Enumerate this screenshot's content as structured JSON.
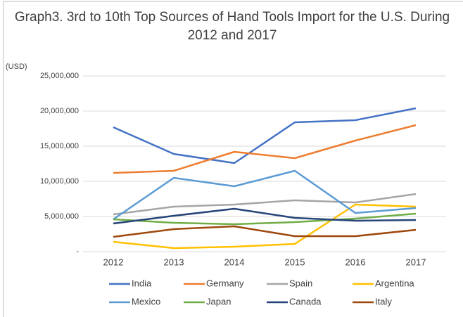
{
  "chart_data": {
    "type": "line",
    "title": "Graph3. 3rd to 10th Top Sources of Hand Tools Import for the U.S. During 2012 and 2017",
    "y_label": "(USD)",
    "categories": [
      "2012",
      "2013",
      "2014",
      "2015",
      "2016",
      "2017"
    ],
    "ylim": [
      0,
      25000000
    ],
    "yticks": [
      {
        "value": 0,
        "label": "-"
      },
      {
        "value": 5000000,
        "label": "5,000,000"
      },
      {
        "value": 10000000,
        "label": "10,000,000"
      },
      {
        "value": 15000000,
        "label": "15,000,000"
      },
      {
        "value": 20000000,
        "label": "20,000,000"
      },
      {
        "value": 25000000,
        "label": "25,000,000"
      }
    ],
    "grid": true,
    "legend": "bottom",
    "series": [
      {
        "name": "India",
        "color": "#4472c4",
        "values": [
          17700000,
          13900000,
          12600000,
          18400000,
          18700000,
          20400000
        ]
      },
      {
        "name": "Germany",
        "color": "#ed7d31",
        "values": [
          11200000,
          11500000,
          14200000,
          13300000,
          15800000,
          18000000
        ]
      },
      {
        "name": "Spain",
        "color": "#a5a5a5",
        "values": [
          5300000,
          6400000,
          6700000,
          7300000,
          7000000,
          8200000
        ]
      },
      {
        "name": "Argentina",
        "color": "#ffc000",
        "values": [
          1400000,
          500000,
          700000,
          1100000,
          6700000,
          6400000
        ]
      },
      {
        "name": "Mexico",
        "color": "#5b9bd5",
        "values": [
          4600000,
          10500000,
          9300000,
          11500000,
          5500000,
          6200000
        ]
      },
      {
        "name": "Japan",
        "color": "#70ad47",
        "values": [
          4600000,
          4100000,
          3900000,
          4200000,
          4700000,
          5400000
        ]
      },
      {
        "name": "Canada",
        "color": "#264478",
        "values": [
          4000000,
          5100000,
          6100000,
          4800000,
          4400000,
          4500000
        ]
      },
      {
        "name": "Italy",
        "color": "#9e480e",
        "values": [
          2100000,
          3200000,
          3600000,
          2200000,
          2200000,
          3100000
        ]
      }
    ]
  }
}
